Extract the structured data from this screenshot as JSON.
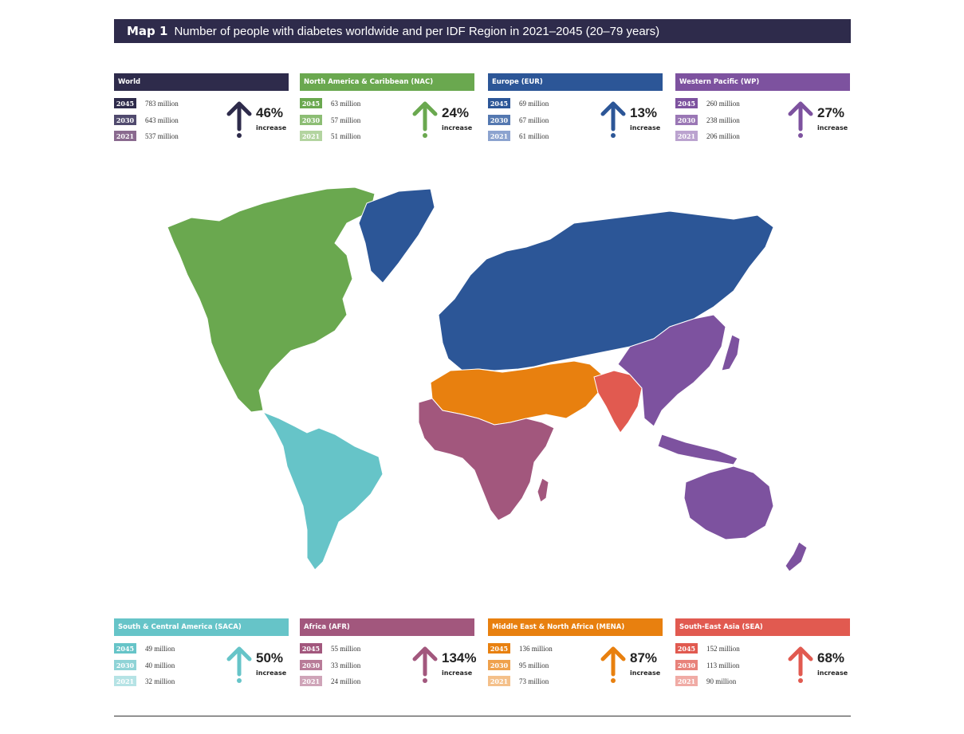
{
  "title": {
    "lead": "Map 1",
    "text": "Number of people with diabetes worldwide and per IDF Region in 2021–2045 (20–79 years)"
  },
  "panels": [
    {
      "key": "world",
      "name": "World",
      "color": "#2e2b4b",
      "badge_colors": [
        "#2e2b4b",
        "#504a6e",
        "#8a6a8f"
      ],
      "rows": [
        {
          "year": "2045",
          "value": "783 million"
        },
        {
          "year": "2030",
          "value": "643 million"
        },
        {
          "year": "2021",
          "value": "537 million"
        }
      ],
      "percent": "46%",
      "increase_label": "increase"
    },
    {
      "key": "nac",
      "name": "North America & Caribbean (NAC)",
      "color": "#6aa84f",
      "badge_colors": [
        "#6aa84f",
        "#8cbd74",
        "#b3d4a0"
      ],
      "rows": [
        {
          "year": "2045",
          "value": "63 million"
        },
        {
          "year": "2030",
          "value": "57 million"
        },
        {
          "year": "2021",
          "value": "51 million"
        }
      ],
      "percent": "24%",
      "increase_label": "increase"
    },
    {
      "key": "eur",
      "name": "Europe (EUR)",
      "color": "#2c5697",
      "badge_colors": [
        "#2c5697",
        "#5478b0",
        "#8ca3cf"
      ],
      "rows": [
        {
          "year": "2045",
          "value": "69 million"
        },
        {
          "year": "2030",
          "value": "67 million"
        },
        {
          "year": "2021",
          "value": "61 million"
        }
      ],
      "percent": "13%",
      "increase_label": "increase"
    },
    {
      "key": "wp",
      "name": "Western Pacific (WP)",
      "color": "#7d529f",
      "badge_colors": [
        "#7d529f",
        "#9a77b5",
        "#bba3cf"
      ],
      "rows": [
        {
          "year": "2045",
          "value": "260 million"
        },
        {
          "year": "2030",
          "value": "238 million"
        },
        {
          "year": "2021",
          "value": "206 million"
        }
      ],
      "percent": "27%",
      "increase_label": "increase"
    },
    {
      "key": "saca",
      "name": "South & Central America (SACA)",
      "color": "#66c4c8",
      "badge_colors": [
        "#66c4c8",
        "#8fd3d6",
        "#b5e3e5"
      ],
      "rows": [
        {
          "year": "2045",
          "value": "49 million"
        },
        {
          "year": "2030",
          "value": "40 million"
        },
        {
          "year": "2021",
          "value": "32 million"
        }
      ],
      "percent": "50%",
      "increase_label": "increase"
    },
    {
      "key": "afr",
      "name": "Africa (AFR)",
      "color": "#a2577d",
      "badge_colors": [
        "#a2577d",
        "#b87b98",
        "#cfa4b8"
      ],
      "rows": [
        {
          "year": "2045",
          "value": "55 million"
        },
        {
          "year": "2030",
          "value": "33 million"
        },
        {
          "year": "2021",
          "value": "24 million"
        }
      ],
      "percent": "134%",
      "increase_label": "increase"
    },
    {
      "key": "mena",
      "name": "Middle East & North Africa (MENA)",
      "color": "#e8800f",
      "badge_colors": [
        "#e8800f",
        "#efa14c",
        "#f4c08a"
      ],
      "rows": [
        {
          "year": "2045",
          "value": "136 million"
        },
        {
          "year": "2030",
          "value": "95 million"
        },
        {
          "year": "2021",
          "value": "73 million"
        }
      ],
      "percent": "87%",
      "increase_label": "increase"
    },
    {
      "key": "sea",
      "name": "South-East Asia (SEA)",
      "color": "#e15a50",
      "badge_colors": [
        "#e15a50",
        "#e8827a",
        "#f0aba5"
      ],
      "rows": [
        {
          "year": "2045",
          "value": "152 million"
        },
        {
          "year": "2030",
          "value": "113 million"
        },
        {
          "year": "2021",
          "value": "90 million"
        }
      ],
      "percent": "68%",
      "increase_label": "increase"
    }
  ],
  "map_colors": {
    "nac": "#6aa84f",
    "saca": "#66c4c8",
    "eur": "#2c5697",
    "afr": "#a2577d",
    "mena": "#e8800f",
    "sea": "#e15a50",
    "wp": "#7d529f",
    "border": "#ffffff"
  }
}
